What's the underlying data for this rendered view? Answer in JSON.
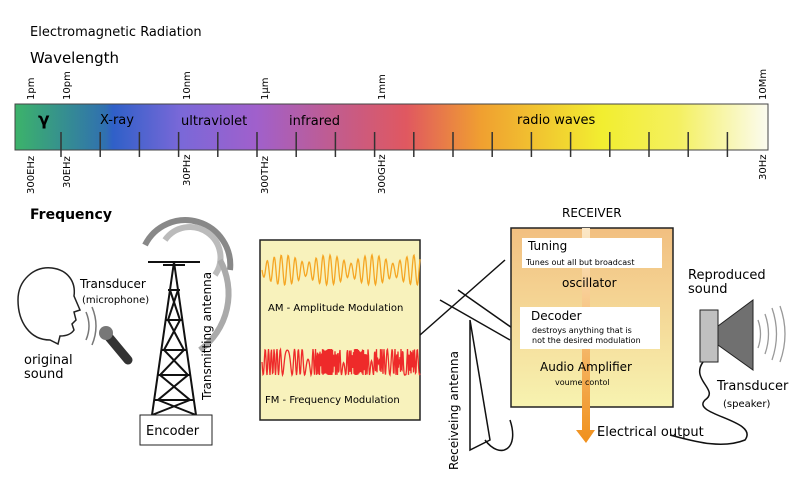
{
  "title": "Electromagnetic Radiation",
  "wavelength_label": "Wavelength",
  "frequency_label": "Frequency",
  "wavelength_ticks": [
    "1pm",
    "10pm",
    "10nm",
    "1µm",
    "1mm",
    "10Mm"
  ],
  "frequency_ticks": [
    "300EHz",
    "30EHz",
    "30PHz",
    "300THz",
    "300GHz",
    "30Hz"
  ],
  "bands": [
    "γ",
    "X-ray",
    "ultraviolet",
    "infrared",
    "radio waves"
  ],
  "transmitter": {
    "transducer": "Transducer",
    "transducer_sub": "(microphone)",
    "original_sound_1": "original",
    "original_sound_2": "sound",
    "antenna": "Transmitting antenna",
    "encoder": "Encoder"
  },
  "modulation": {
    "am": "AM - Amplitude Modulation",
    "fm": "FM - Frequency Modulation",
    "am_color": "#f5a623",
    "fm_color": "#ee2a2a"
  },
  "receiving_antenna": "Receiveing antenna",
  "receiver": {
    "title": "RECEIVER",
    "tuning": "Tuning",
    "tuning_sub": "Tunes out all but broadcast",
    "oscillator": "oscillator",
    "decoder": "Decoder",
    "decoder_sub_1": "destroys anything that is",
    "decoder_sub_2": "not the desired modulation",
    "amplifier": "Audio Amplifier",
    "amplifier_sub": "voume contol",
    "output": "Electrical output"
  },
  "speaker": {
    "reproduced_1": "Reproduced",
    "reproduced_2": "sound",
    "transducer": "Transducer",
    "transducer_sub": "(speaker)"
  }
}
